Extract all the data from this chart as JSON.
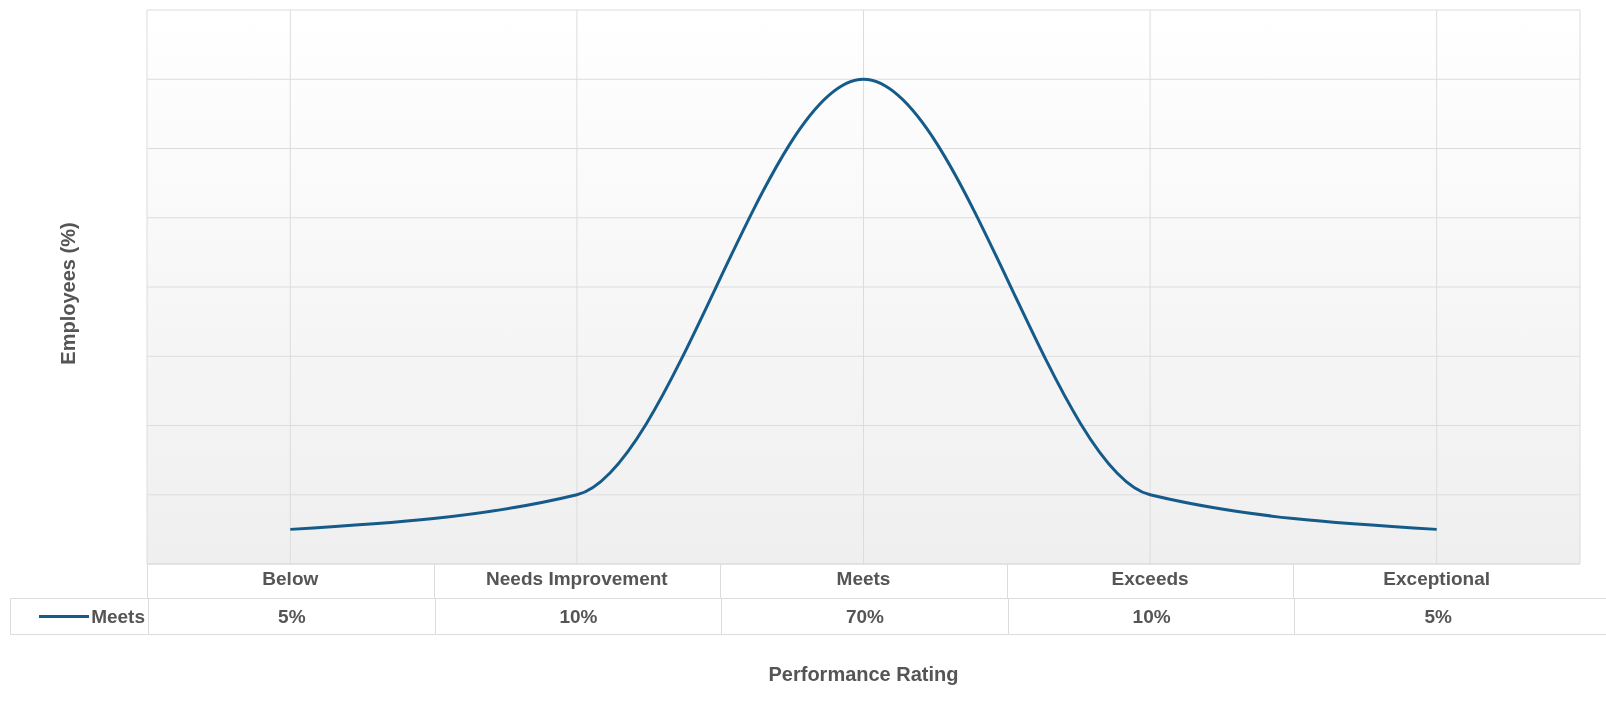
{
  "chart_data": {
    "type": "line",
    "xlabel": "Performance Rating",
    "ylabel": "Employees (%)",
    "categories": [
      "Below",
      "Needs Improvement",
      "Meets",
      "Exceeds",
      "Exceptional"
    ],
    "series": [
      {
        "name": "Meets",
        "color": "#155b8a",
        "values": [
          5,
          10,
          70,
          10,
          5
        ],
        "value_labels": [
          "5%",
          "10%",
          "70%",
          "10%",
          "5%"
        ]
      }
    ],
    "ylim": [
      0,
      80
    ],
    "tick_labels": "x",
    "grid": true,
    "legend": "bottom left",
    "marker": "none",
    "line_style": "solid"
  }
}
